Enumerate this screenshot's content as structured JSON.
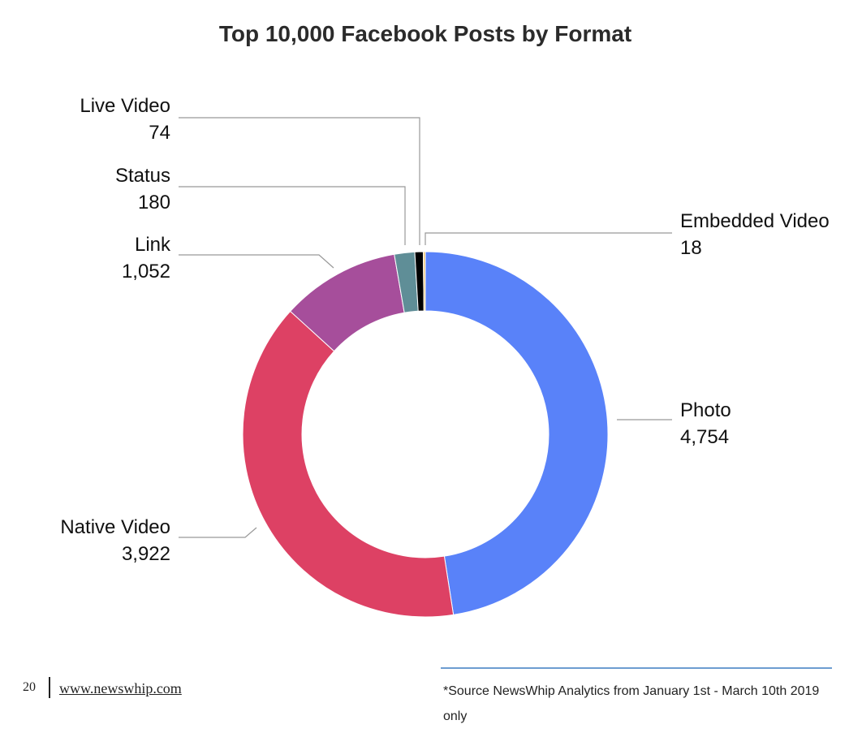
{
  "chart_data": {
    "type": "pie",
    "title": "Top 10,000 Facebook Posts by Format",
    "series": [
      {
        "name": "Photo",
        "value": 4754,
        "value_label": "4,754",
        "color": "#5982f9"
      },
      {
        "name": "Native Video",
        "value": 3922,
        "value_label": "3,922",
        "color": "#dd4164"
      },
      {
        "name": "Link",
        "value": 1052,
        "value_label": "1,052",
        "color": "#a64e9b"
      },
      {
        "name": "Status",
        "value": 180,
        "value_label": "180",
        "color": "#5f8e97"
      },
      {
        "name": "Live Video",
        "value": 74,
        "value_label": "74",
        "color": "#000000"
      },
      {
        "name": "Embedded Video",
        "value": 18,
        "value_label": "18",
        "color": "#f2c66d"
      }
    ],
    "donut": true,
    "legend": "none (labels beside slices with leader lines)"
  },
  "footer": {
    "page_number": "20",
    "url": "www.newswhip.com",
    "source_note": "*Source NewsWhip Analytics from January 1st - March 10th 2019 only"
  }
}
